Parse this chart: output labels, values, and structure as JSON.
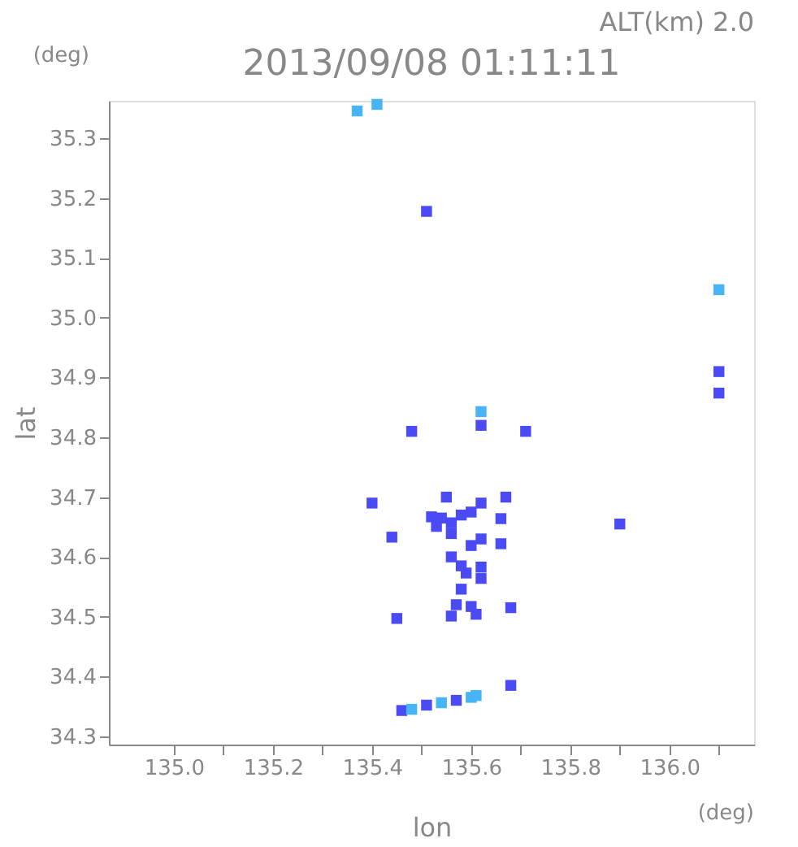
{
  "chart_data": {
    "type": "scatter",
    "title": "2013/09/08 01:11:11",
    "xlabel": "lon",
    "ylabel": "lat",
    "annotations": [
      "ALT(km) 2.0",
      "(deg)",
      "(deg)"
    ],
    "marker": "square",
    "grid": false,
    "legend": false,
    "xlim": [
      134.869,
      136.171
    ],
    "ylim": [
      34.286,
      35.363
    ],
    "xticks": [
      {
        "value": 135.0,
        "label": "135.0"
      },
      {
        "value": 135.1,
        "label": null
      },
      135.2,
      {
        "value": 135.3,
        "label": null
      },
      135.4,
      {
        "value": 135.5,
        "label": null
      },
      135.6,
      {
        "value": 135.7,
        "label": null
      },
      135.8,
      {
        "value": 135.9,
        "label": null
      },
      {
        "value": 136.0,
        "label": "136.0"
      },
      {
        "value": 136.1,
        "label": null
      }
    ],
    "yticks": [
      34.3,
      34.4,
      34.5,
      34.6,
      34.7,
      34.8,
      34.9,
      {
        "value": 35.0,
        "label": "35.0"
      },
      35.1,
      35.2,
      35.3
    ],
    "series": [
      {
        "color": "#4b4bf5",
        "x": [
          135.51,
          136.1,
          136.1,
          135.62,
          135.48,
          135.71,
          135.4,
          135.55,
          135.62,
          135.67,
          135.6,
          135.58,
          135.54,
          135.52,
          135.56,
          135.53,
          135.66,
          135.9,
          135.44,
          135.56,
          135.62,
          135.66,
          135.6,
          135.58,
          135.62,
          135.56,
          135.59,
          135.62,
          135.58,
          135.57,
          135.6,
          135.61,
          135.56,
          135.68,
          135.45,
          135.68,
          135.46,
          135.51,
          135.57
        ],
        "values": [
          35.178,
          34.91,
          34.874,
          34.82,
          34.81,
          34.81,
          34.69,
          34.7,
          34.69,
          34.7,
          34.675,
          34.67,
          34.665,
          34.667,
          34.657,
          34.651,
          34.664,
          34.655,
          34.633,
          34.639,
          34.63,
          34.622,
          34.619,
          34.585,
          34.583,
          34.6,
          34.573,
          34.564,
          34.546,
          34.52,
          34.517,
          34.504,
          34.501,
          34.515,
          34.497,
          34.385,
          34.343,
          34.352,
          34.36
        ]
      },
      {
        "color": "#46b4f5",
        "x": [
          135.41,
          135.37,
          136.1,
          135.62,
          135.48,
          135.54,
          135.6,
          135.61
        ],
        "values": [
          35.357,
          35.346,
          35.047,
          34.843,
          34.345,
          34.356,
          34.365,
          34.368
        ]
      }
    ]
  }
}
